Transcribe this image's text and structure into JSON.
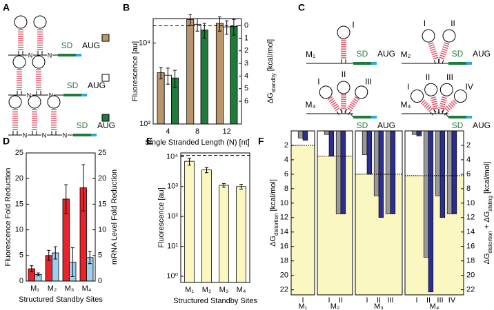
{
  "panel_labels": {
    "a": "A",
    "b": "B",
    "c": "C",
    "d": "D",
    "e": "E",
    "f": "F"
  },
  "diagram_a": {
    "linker": "N",
    "sd": "SD",
    "start_codon": "AUG"
  },
  "diagram_c": {
    "sd": "SD",
    "start_codon": "AUG",
    "models": [
      {
        "label": "M₁",
        "hairpins": [
          "I"
        ]
      },
      {
        "label": "M₂",
        "hairpins": [
          "I",
          "II"
        ]
      },
      {
        "label": "M₃",
        "hairpins": [
          "I",
          "II",
          "III"
        ]
      },
      {
        "label": "M₄",
        "hairpins": [
          "I",
          "II",
          "III",
          "IV"
        ]
      }
    ]
  },
  "chart_data": [
    {
      "type": "bar",
      "log_y": true,
      "ylabel": "Fluorescence [au]",
      "y2label": {
        "main": "ΔG",
        "sub": "standby",
        "unit": "[kcal/mol]"
      },
      "xlabel": "Single Stranded Length (N) [nt]",
      "categories": [
        4,
        8,
        12
      ],
      "series": [
        {
          "color": "#b8956a",
          "values": [
            4300,
            19500,
            17500
          ],
          "errors": [
            700,
            3000,
            3500
          ]
        },
        {
          "color": "#ffffff",
          "values": [
            4000,
            17000,
            15800
          ],
          "errors": [
            900,
            3000,
            3000
          ]
        },
        {
          "color": "#1e7b3c",
          "values": [
            3700,
            14500,
            16000
          ],
          "errors": [
            900,
            3000,
            3500
          ]
        }
      ],
      "ylim": [
        1000,
        20000
      ],
      "yticks": [
        {
          "value": 1000,
          "label": "10³"
        },
        {
          "value": 10000,
          "label": "10⁴"
        }
      ],
      "y2lim": [
        7.8,
        -0.55
      ],
      "y2ticks": [
        0,
        1,
        2,
        3,
        4,
        5,
        6
      ],
      "reference_line": 16300
    },
    {
      "type": "bar",
      "ylabel": "Fluorescence Fold Reduction",
      "y2label": "mRNA Level Fold Reduction",
      "xlabel": "Structured Standby Sites",
      "categories": [
        "M₁",
        "M₂",
        "M₃",
        "M₄"
      ],
      "series": [
        {
          "color": "#e8232a",
          "values": [
            2.4,
            5.0,
            16.0,
            18.2
          ],
          "errors": [
            0.6,
            1.0,
            2.8,
            4.5
          ]
        },
        {
          "color": "#9fcfee",
          "axis": "y2",
          "values": [
            1.3,
            5.5,
            3.7,
            4.6
          ],
          "errors": [
            0.3,
            1.2,
            2.8,
            1.2
          ]
        }
      ],
      "ylim": [
        0,
        25
      ],
      "yticks": [
        0,
        5,
        10,
        15,
        20,
        25
      ],
      "y2lim": [
        0,
        25
      ],
      "y2ticks": [
        0,
        5,
        10,
        15,
        20,
        25
      ]
    },
    {
      "type": "bar",
      "log_y": true,
      "ylabel": "Fluorescence [au]",
      "xlabel": "Structured Standby Sites",
      "categories": [
        "M₁",
        "M₂",
        "M₃",
        "M₄"
      ],
      "series": [
        {
          "color": "#fbf7c0",
          "values": [
            7000,
            3600,
            1100,
            1000
          ],
          "errors": [
            1800,
            700,
            150,
            180
          ]
        }
      ],
      "ylim": [
        0.62,
        13300
      ],
      "yticks": [
        {
          "value": 1,
          "label": "10⁰"
        },
        {
          "value": 10,
          "label": "10¹"
        },
        {
          "value": 100,
          "label": "10²"
        },
        {
          "value": 1000,
          "label": "10³"
        },
        {
          "value": 10000,
          "label": "10⁴"
        }
      ],
      "reference_line": 11000
    },
    {
      "type": "panels",
      "y_inverted": true,
      "background": "#fbf7c0",
      "ylabel": {
        "main": "ΔG",
        "sub": "distortion",
        "unit": "[kcal/mol]"
      },
      "y2label": {
        "main": "ΔG",
        "sub": "distortion",
        "plus": "+ ΔG",
        "sub2": "sliding",
        "unit": "[kcal/mol]"
      },
      "ylim": [
        0,
        22.7
      ],
      "yticks": [
        2,
        4,
        6,
        8,
        10,
        12,
        14,
        16,
        18,
        20,
        22
      ],
      "y2lim": [
        0,
        22.7
      ],
      "y2ticks": [
        2,
        4,
        6,
        8,
        10,
        12,
        14,
        16,
        18,
        20,
        22
      ],
      "groups": [
        {
          "label": "M₁",
          "categories": [
            "I"
          ],
          "threshold": 2.0,
          "series": [
            {
              "color": "#999999",
              "values": [
                1.0
              ]
            },
            {
              "color": "#2b2f8f",
              "values": [
                1.3
              ]
            }
          ]
        },
        {
          "label": "M₂",
          "categories": [
            "I",
            "II"
          ],
          "threshold": 3.5,
          "series": [
            {
              "color": "#999999",
              "values": [
                0.5,
                11.5
              ]
            },
            {
              "color": "#2b2f8f",
              "values": [
                3.5,
                11.5
              ]
            }
          ]
        },
        {
          "label": "M₃",
          "categories": [
            "I",
            "II",
            "III"
          ],
          "threshold": 6.0,
          "series": [
            {
              "color": "#999999",
              "values": [
                3.3,
                9.0,
                11.5
              ]
            },
            {
              "color": "#2b2f8f",
              "values": [
                6.0,
                12.0,
                11.5
              ]
            }
          ]
        },
        {
          "label": "M₄",
          "categories": [
            "I",
            "II",
            "III",
            "IV"
          ],
          "threshold": 6.2,
          "series": [
            {
              "color": "#999999",
              "values": [
                0.5,
                17.5,
                9.0,
                11.5
              ]
            },
            {
              "color": "#2b2f8f",
              "values": [
                0.7,
                22.3,
                12.0,
                11.5
              ]
            }
          ]
        }
      ]
    }
  ]
}
